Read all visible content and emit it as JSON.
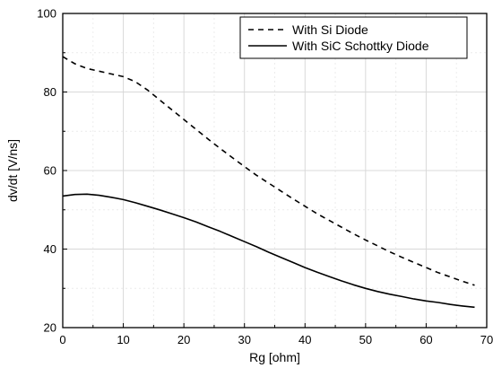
{
  "chart_data": {
    "type": "line",
    "title": "",
    "xlabel": "Rg [ohm]",
    "ylabel": "dv/dt [V/ns]",
    "xlim": [
      0,
      70
    ],
    "ylim": [
      20,
      100
    ],
    "xticks": [
      0,
      10,
      20,
      30,
      40,
      50,
      60,
      70
    ],
    "yticks": [
      20,
      40,
      60,
      80,
      100
    ],
    "grid": true,
    "legend_position": "top-right",
    "series": [
      {
        "name": "With Si Diode",
        "line_style": "dashed",
        "color": "#000000",
        "x": [
          0,
          2,
          4,
          6,
          8,
          10,
          12,
          14,
          16,
          18,
          20,
          22,
          24,
          26,
          28,
          30,
          32,
          34,
          36,
          38,
          40,
          42,
          44,
          46,
          48,
          50,
          52,
          54,
          56,
          58,
          60,
          62,
          64,
          66,
          68
        ],
        "y": [
          89,
          87.2,
          86,
          85.3,
          84.6,
          83.9,
          82.6,
          80.5,
          78.0,
          75.5,
          73.0,
          70.5,
          68.0,
          65.6,
          63.3,
          61.0,
          58.8,
          56.8,
          54.8,
          52.8,
          50.9,
          49.0,
          47.3,
          45.6,
          43.9,
          42.3,
          40.8,
          39.3,
          37.9,
          36.6,
          35.3,
          34.0,
          32.9,
          31.8,
          30.8
        ]
      },
      {
        "name": "With SiC Schottky Diode",
        "line_style": "solid",
        "color": "#000000",
        "x": [
          0,
          2,
          4,
          6,
          8,
          10,
          12,
          14,
          16,
          18,
          20,
          22,
          24,
          26,
          28,
          30,
          32,
          34,
          36,
          38,
          40,
          42,
          44,
          46,
          48,
          50,
          52,
          54,
          56,
          58,
          60,
          62,
          64,
          66,
          68
        ],
        "y": [
          53.5,
          53.9,
          54.0,
          53.7,
          53.2,
          52.6,
          51.8,
          50.9,
          50.0,
          49.0,
          48.0,
          46.9,
          45.7,
          44.5,
          43.2,
          41.9,
          40.6,
          39.2,
          37.9,
          36.6,
          35.3,
          34.1,
          33.0,
          31.9,
          30.9,
          30.0,
          29.2,
          28.5,
          27.9,
          27.3,
          26.8,
          26.4,
          25.9,
          25.5,
          25.2
        ]
      }
    ]
  }
}
